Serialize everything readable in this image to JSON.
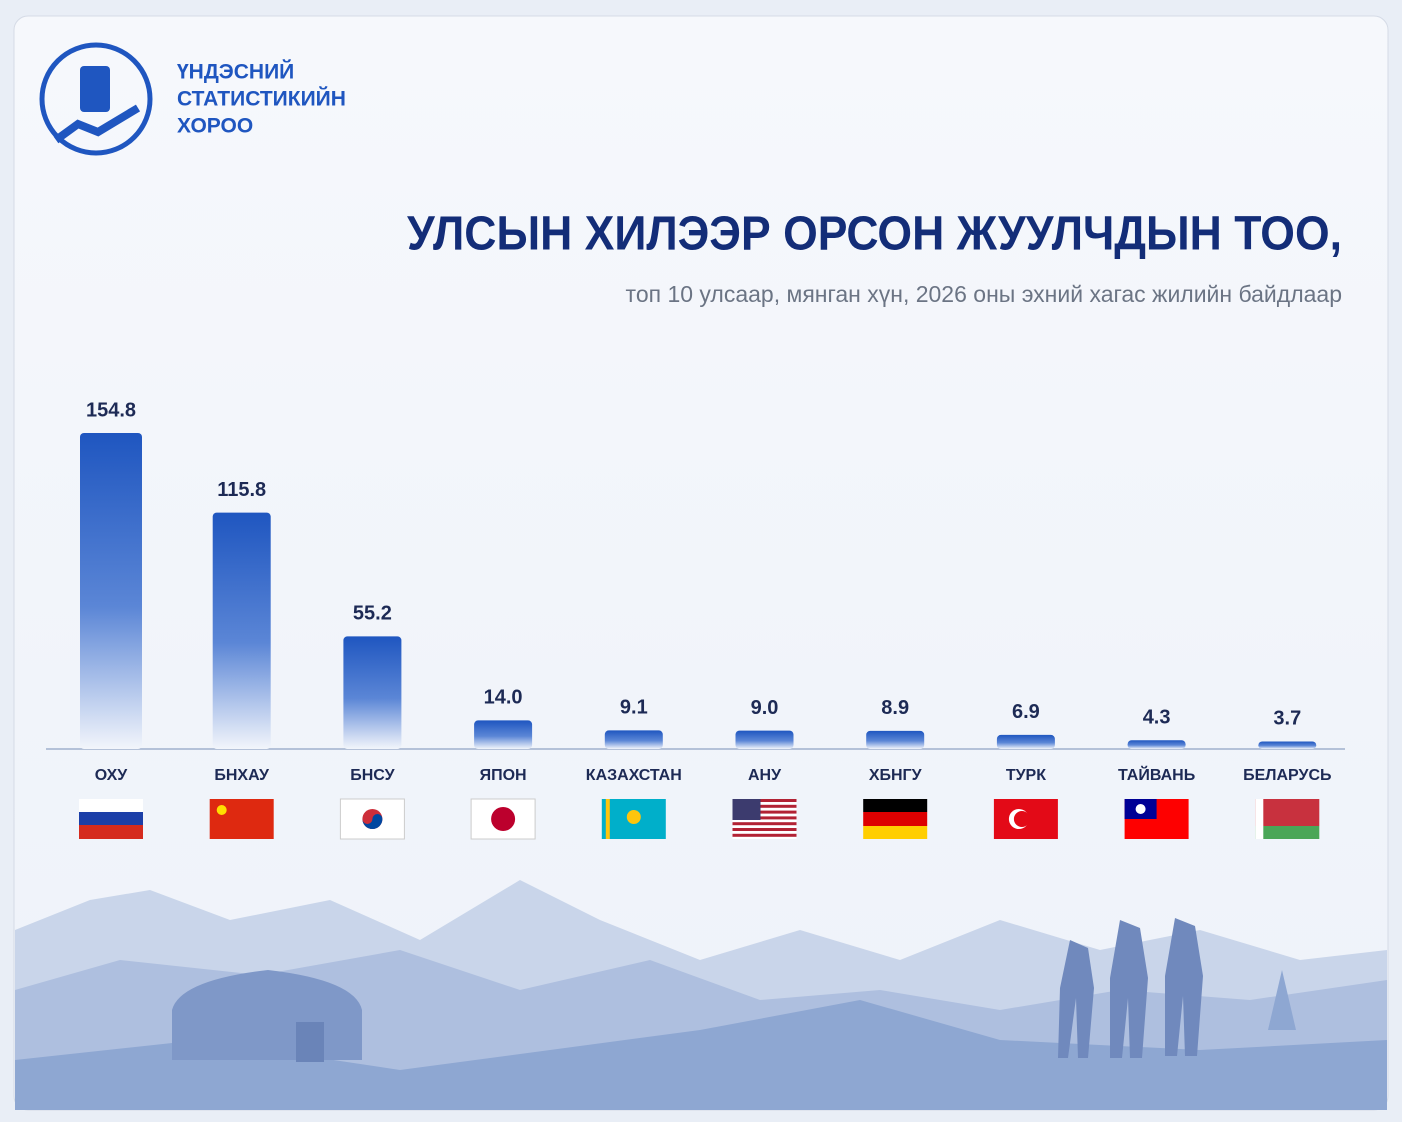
{
  "logo": {
    "lines": [
      "ҮНДЭСНИЙ",
      "СТАТИСТИКИЙН",
      "ХОРОО"
    ]
  },
  "chart_data": {
    "type": "bar",
    "title": "УЛСЫН ХИЛЭЭР ОРСОН ЖУУЛЧДЫН ТОО,",
    "subtitle": "топ 10 улсаар, мянган хүн, 2026 оны эхний хагас жилийн байдлаар",
    "categories": [
      "ОХУ",
      "БНХАУ",
      "БНСУ",
      "ЯПОН",
      "КАЗАХСТАН",
      "АНУ",
      "ХБНГУ",
      "ТУРК",
      "ТАЙВАНЬ",
      "БЕЛАРУСЬ"
    ],
    "values": [
      154.8,
      115.8,
      55.2,
      14.0,
      9.1,
      9.0,
      8.9,
      6.9,
      4.3,
      3.7
    ],
    "value_labels": [
      "154.8",
      "115.8",
      "55.2",
      "14.0",
      "9.1",
      "9.0",
      "8.9",
      "6.9",
      "4.3",
      "3.7"
    ],
    "color": "#1f56c0"
  }
}
